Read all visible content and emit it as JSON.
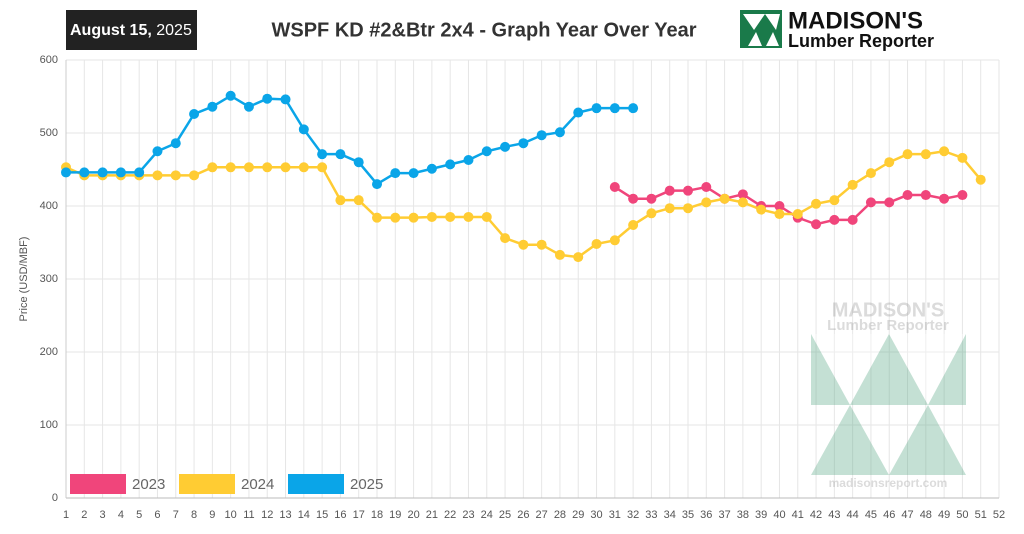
{
  "chart_data": {
    "type": "line",
    "title": "WSPF KD #2&Btr 2x4 - Graph Year Over Year",
    "date": "August 15,",
    "year": "2025",
    "logo": {
      "name": "MADISON'S",
      "subtitle": "Lumber Reporter"
    },
    "watermark": {
      "name": "MADISON'S",
      "subtitle": "Lumber Reporter",
      "url": "madisonsreport.com"
    },
    "y_label": "Price  (USD/MBF)",
    "categories": [
      1,
      2,
      3,
      4,
      5,
      6,
      7,
      8,
      9,
      10,
      11,
      12,
      13,
      14,
      15,
      16,
      17,
      18,
      19,
      20,
      21,
      22,
      23,
      24,
      25,
      26,
      27,
      28,
      29,
      30,
      31,
      32,
      33,
      34,
      35,
      36,
      37,
      38,
      39,
      40,
      41,
      42,
      43,
      44,
      45,
      46,
      47,
      48,
      49,
      50,
      51,
      52
    ],
    "ylim": [
      0,
      600
    ],
    "yticks": [
      0,
      100,
      200,
      300,
      400,
      500,
      600
    ],
    "grid": true,
    "legend": "bottom-left",
    "series": [
      {
        "name": "2023",
        "color": "#f0457b",
        "values": [
          null,
          null,
          null,
          null,
          null,
          null,
          null,
          null,
          null,
          null,
          null,
          null,
          null,
          null,
          null,
          null,
          null,
          null,
          null,
          null,
          null,
          null,
          null,
          null,
          null,
          null,
          null,
          null,
          null,
          null,
          426,
          410,
          410,
          421,
          421,
          426,
          410,
          416,
          400,
          400,
          384,
          375,
          381,
          381,
          405,
          405,
          415,
          415,
          410,
          415,
          null,
          null
        ]
      },
      {
        "name": "2024",
        "color": "#ffcc33",
        "values": [
          453,
          442,
          442,
          442,
          442,
          442,
          442,
          442,
          453,
          453,
          453,
          453,
          453,
          453,
          453,
          408,
          408,
          384,
          384,
          384,
          385,
          385,
          385,
          385,
          356,
          347,
          347,
          333,
          330,
          348,
          353,
          374,
          390,
          397,
          397,
          405,
          410,
          405,
          395,
          389,
          389,
          403,
          408,
          429,
          445,
          460,
          471,
          471,
          475,
          466,
          436,
          null
        ]
      },
      {
        "name": "2025",
        "color": "#0aa5e8",
        "values": [
          446,
          446,
          446,
          446,
          446,
          475,
          486,
          526,
          536,
          551,
          536,
          547,
          546,
          505,
          471,
          471,
          460,
          430,
          445,
          445,
          451,
          457,
          463,
          475,
          481,
          486,
          497,
          501,
          528,
          534,
          534,
          534,
          null,
          null,
          null,
          null,
          null,
          null,
          null,
          null,
          null,
          null,
          null,
          null,
          null,
          null,
          null,
          null,
          null,
          null,
          null,
          null
        ]
      }
    ]
  }
}
